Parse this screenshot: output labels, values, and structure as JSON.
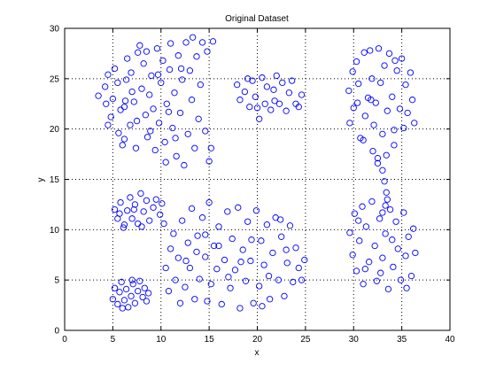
{
  "chart_data": {
    "type": "scatter",
    "title": "Original Dataset",
    "xlabel": "x",
    "ylabel": "y",
    "xlim": [
      0,
      40
    ],
    "ylim": [
      0,
      30
    ],
    "xticks": [
      0,
      5,
      10,
      15,
      20,
      25,
      30,
      35,
      40
    ],
    "yticks": [
      0,
      5,
      10,
      15,
      20,
      25,
      30
    ],
    "grid": true,
    "marker": "circle-open",
    "colors": {
      "marker": "#0000ff",
      "grid": "#000000",
      "axes": "#000000",
      "background": "#ffffff"
    },
    "series": [
      {
        "points": [
          [
            3.5,
            23.3
          ],
          [
            4.2,
            24.2
          ],
          [
            4.5,
            25.4
          ],
          [
            4.3,
            22.5
          ],
          [
            4.8,
            21.2
          ],
          [
            4.5,
            20.4
          ],
          [
            5.0,
            23.0
          ],
          [
            5.2,
            26.0
          ],
          [
            5.5,
            24.6
          ],
          [
            5.8,
            21.9
          ],
          [
            5.6,
            19.6
          ],
          [
            6.0,
            18.4
          ],
          [
            6.2,
            22.2
          ],
          [
            6.5,
            27.0
          ],
          [
            6.4,
            24.9
          ],
          [
            6.8,
            20.4
          ],
          [
            6.2,
            19.0
          ],
          [
            6.9,
            25.6
          ],
          [
            7.2,
            22.7
          ],
          [
            7.4,
            18.1
          ],
          [
            7.6,
            27.6
          ],
          [
            7.8,
            28.3
          ],
          [
            7.5,
            20.8
          ],
          [
            8.0,
            24.0
          ],
          [
            8.2,
            26.5
          ],
          [
            8.4,
            21.4
          ],
          [
            8.6,
            19.2
          ],
          [
            8.8,
            23.4
          ],
          [
            8.5,
            27.7
          ],
          [
            9.0,
            25.3
          ],
          [
            9.2,
            22.0
          ],
          [
            9.4,
            17.9
          ],
          [
            9.6,
            28.0
          ],
          [
            9.8,
            20.6
          ],
          [
            10.0,
            24.6
          ],
          [
            10.2,
            26.8
          ],
          [
            10.4,
            18.7
          ],
          [
            10.6,
            22.5
          ],
          [
            10.5,
            16.7
          ],
          [
            10.9,
            25.9
          ],
          [
            11.0,
            28.5
          ],
          [
            11.2,
            20.1
          ],
          [
            11.4,
            23.6
          ],
          [
            11.6,
            17.3
          ],
          [
            11.8,
            27.3
          ],
          [
            12.0,
            21.6
          ],
          [
            12.2,
            24.9
          ],
          [
            12.4,
            16.4
          ],
          [
            12.6,
            28.6
          ],
          [
            12.8,
            19.5
          ],
          [
            13.0,
            25.8
          ],
          [
            13.2,
            22.9
          ],
          [
            13.3,
            29.1
          ],
          [
            13.5,
            18.1
          ],
          [
            13.7,
            27.2
          ],
          [
            13.9,
            21.0
          ],
          [
            14.1,
            24.4
          ],
          [
            14.3,
            28.6
          ],
          [
            14.6,
            19.8
          ],
          [
            14.8,
            27.7
          ],
          [
            15.2,
            18.1
          ],
          [
            15.4,
            28.7
          ],
          [
            11.5,
            19.1
          ],
          [
            10.8,
            21.7
          ],
          [
            7.0,
            23.7
          ],
          [
            9.7,
            25.4
          ],
          [
            15.0,
            16.8
          ],
          [
            6.3,
            22.8
          ],
          [
            8.9,
            19.8
          ],
          [
            12.1,
            26.0
          ]
        ]
      },
      {
        "points": [
          [
            17.9,
            24.4
          ],
          [
            18.2,
            22.9
          ],
          [
            18.7,
            23.7
          ],
          [
            19.2,
            22.2
          ],
          [
            19.5,
            24.8
          ],
          [
            19.8,
            23.2
          ],
          [
            20.2,
            21.0
          ],
          [
            20.5,
            25.1
          ],
          [
            20.8,
            22.5
          ],
          [
            21.0,
            24.2
          ],
          [
            21.4,
            21.9
          ],
          [
            21.7,
            23.9
          ],
          [
            22.0,
            25.3
          ],
          [
            22.3,
            22.5
          ],
          [
            22.6,
            24.6
          ],
          [
            23.0,
            21.8
          ],
          [
            23.3,
            23.6
          ],
          [
            23.6,
            24.8
          ],
          [
            24.0,
            22.5
          ],
          [
            24.3,
            22.2
          ],
          [
            24.6,
            23.4
          ],
          [
            20.0,
            22.1
          ],
          [
            21.8,
            22.8
          ],
          [
            19.0,
            25.0
          ]
        ]
      },
      {
        "points": [
          [
            29.5,
            23.8
          ],
          [
            29.9,
            25.7
          ],
          [
            30.0,
            22.1
          ],
          [
            29.6,
            20.6
          ],
          [
            30.3,
            26.7
          ],
          [
            30.5,
            24.5
          ],
          [
            30.7,
            19.1
          ],
          [
            31.1,
            27.6
          ],
          [
            31.2,
            21.3
          ],
          [
            31.5,
            23.1
          ],
          [
            31.7,
            27.8
          ],
          [
            31.9,
            25.0
          ],
          [
            32.1,
            20.4
          ],
          [
            32.3,
            22.6
          ],
          [
            32.6,
            28.0
          ],
          [
            32.8,
            24.6
          ],
          [
            33.0,
            19.5
          ],
          [
            33.2,
            26.3
          ],
          [
            33.5,
            21.8
          ],
          [
            33.7,
            27.5
          ],
          [
            34.0,
            23.2
          ],
          [
            34.2,
            19.9
          ],
          [
            34.5,
            25.8
          ],
          [
            34.8,
            22.0
          ],
          [
            35.0,
            27.0
          ],
          [
            35.2,
            20.1
          ],
          [
            35.4,
            24.4
          ],
          [
            35.6,
            21.6
          ],
          [
            35.9,
            25.6
          ],
          [
            36.1,
            22.9
          ],
          [
            36.3,
            20.6
          ],
          [
            31.0,
            18.9
          ],
          [
            32.0,
            17.8
          ],
          [
            32.5,
            17.1
          ],
          [
            33.0,
            15.9
          ],
          [
            33.2,
            14.8
          ],
          [
            33.4,
            13.7
          ],
          [
            33.5,
            13.0
          ],
          [
            33.3,
            12.4
          ],
          [
            33.0,
            11.7
          ],
          [
            32.5,
            16.6
          ],
          [
            33.4,
            17.4
          ],
          [
            34.2,
            18.4
          ],
          [
            30.4,
            22.6
          ],
          [
            34.3,
            26.8
          ],
          [
            31.8,
            22.9
          ]
        ]
      },
      {
        "points": [
          [
            5.2,
            12.0
          ],
          [
            5.5,
            11.1
          ],
          [
            5.8,
            12.7
          ],
          [
            6.2,
            10.5
          ],
          [
            6.5,
            11.9
          ],
          [
            6.8,
            13.2
          ],
          [
            7.0,
            11.1
          ],
          [
            7.3,
            12.5
          ],
          [
            7.6,
            10.6
          ],
          [
            7.9,
            13.6
          ],
          [
            8.2,
            11.8
          ],
          [
            8.5,
            12.9
          ],
          [
            8.8,
            10.9
          ],
          [
            9.2,
            12.2
          ],
          [
            9.5,
            13.0
          ],
          [
            9.9,
            11.5
          ],
          [
            10.3,
            10.6
          ],
          [
            10.1,
            12.6
          ],
          [
            6.1,
            10.2
          ],
          [
            8.0,
            10.3
          ],
          [
            7.2,
            12.0
          ],
          [
            5.7,
            11.6
          ]
        ]
      },
      {
        "points": [
          [
            10.5,
            6.2
          ],
          [
            10.8,
            3.9
          ],
          [
            11.0,
            8.1
          ],
          [
            11.3,
            9.6
          ],
          [
            11.5,
            5.0
          ],
          [
            11.8,
            7.2
          ],
          [
            12.0,
            2.7
          ],
          [
            12.2,
            10.9
          ],
          [
            12.5,
            4.3
          ],
          [
            12.8,
            8.7
          ],
          [
            13.0,
            6.2
          ],
          [
            13.2,
            12.1
          ],
          [
            13.5,
            3.1
          ],
          [
            13.8,
            9.4
          ],
          [
            14.0,
            5.1
          ],
          [
            14.3,
            11.2
          ],
          [
            14.6,
            7.3
          ],
          [
            14.8,
            2.9
          ],
          [
            15.0,
            12.7
          ],
          [
            15.2,
            4.6
          ],
          [
            15.5,
            8.4
          ],
          [
            15.8,
            6.1
          ],
          [
            16.0,
            10.3
          ],
          [
            16.3,
            2.6
          ],
          [
            16.6,
            7.0
          ],
          [
            16.9,
            11.8
          ],
          [
            17.2,
            4.2
          ],
          [
            17.4,
            9.1
          ],
          [
            17.7,
            6.0
          ],
          [
            18.0,
            12.2
          ],
          [
            18.2,
            2.2
          ],
          [
            18.5,
            8.0
          ],
          [
            18.8,
            4.9
          ],
          [
            19.0,
            10.8
          ],
          [
            19.3,
            6.9
          ],
          [
            19.6,
            2.7
          ],
          [
            19.9,
            11.9
          ],
          [
            20.2,
            4.4
          ],
          [
            20.4,
            8.9
          ],
          [
            20.7,
            6.5
          ],
          [
            21.0,
            10.5
          ],
          [
            21.3,
            3.1
          ],
          [
            21.6,
            7.7
          ],
          [
            21.9,
            11.2
          ],
          [
            22.2,
            5.0
          ],
          [
            22.5,
            9.3
          ],
          [
            22.8,
            3.4
          ],
          [
            23.1,
            6.7
          ],
          [
            23.4,
            10.4
          ],
          [
            23.7,
            4.8
          ],
          [
            24.0,
            8.2
          ],
          [
            24.3,
            6.2
          ],
          [
            24.6,
            5.0
          ],
          [
            24.9,
            7.0
          ],
          [
            12.6,
            6.9
          ],
          [
            14.6,
            9.5
          ],
          [
            17.0,
            5.3
          ],
          [
            19.4,
            9.0
          ],
          [
            21.2,
            5.4
          ],
          [
            23.0,
            8.0
          ],
          [
            16.0,
            8.4
          ],
          [
            18.3,
            6.8
          ],
          [
            20.5,
            2.4
          ],
          [
            13.7,
            7.8
          ],
          [
            22.4,
            11.0
          ]
        ]
      },
      {
        "points": [
          [
            5.0,
            3.1
          ],
          [
            5.2,
            4.2
          ],
          [
            5.5,
            2.6
          ],
          [
            5.7,
            3.8
          ],
          [
            5.9,
            4.8
          ],
          [
            6.2,
            3.0
          ],
          [
            6.4,
            4.1
          ],
          [
            6.6,
            2.3
          ],
          [
            6.9,
            3.4
          ],
          [
            7.1,
            4.6
          ],
          [
            7.3,
            2.7
          ],
          [
            7.6,
            3.9
          ],
          [
            7.8,
            4.9
          ],
          [
            8.1,
            3.3
          ],
          [
            8.3,
            4.2
          ],
          [
            8.5,
            2.9
          ],
          [
            8.7,
            3.7
          ],
          [
            6.0,
            2.2
          ],
          [
            7.0,
            5.0
          ]
        ]
      },
      {
        "points": [
          [
            29.6,
            9.7
          ],
          [
            29.9,
            7.5
          ],
          [
            30.1,
            11.6
          ],
          [
            30.3,
            5.9
          ],
          [
            30.6,
            8.9
          ],
          [
            30.9,
            12.3
          ],
          [
            31.0,
            4.6
          ],
          [
            31.3,
            10.3
          ],
          [
            31.6,
            6.8
          ],
          [
            31.9,
            12.8
          ],
          [
            32.2,
            8.4
          ],
          [
            32.4,
            4.9
          ],
          [
            32.7,
            11.1
          ],
          [
            33.0,
            7.2
          ],
          [
            33.3,
            9.6
          ],
          [
            33.6,
            4.1
          ],
          [
            33.8,
            12.0
          ],
          [
            34.1,
            6.3
          ],
          [
            34.4,
            10.8
          ],
          [
            34.6,
            8.1
          ],
          [
            34.9,
            5.0
          ],
          [
            35.2,
            11.7
          ],
          [
            35.4,
            7.4
          ],
          [
            35.7,
            9.3
          ],
          [
            36.0,
            5.4
          ],
          [
            36.2,
            10.1
          ],
          [
            36.4,
            7.7
          ],
          [
            31.2,
            6.1
          ],
          [
            32.8,
            5.7
          ],
          [
            34.0,
            9.0
          ],
          [
            35.5,
            4.2
          ],
          [
            30.5,
            10.9
          ]
        ]
      }
    ]
  }
}
